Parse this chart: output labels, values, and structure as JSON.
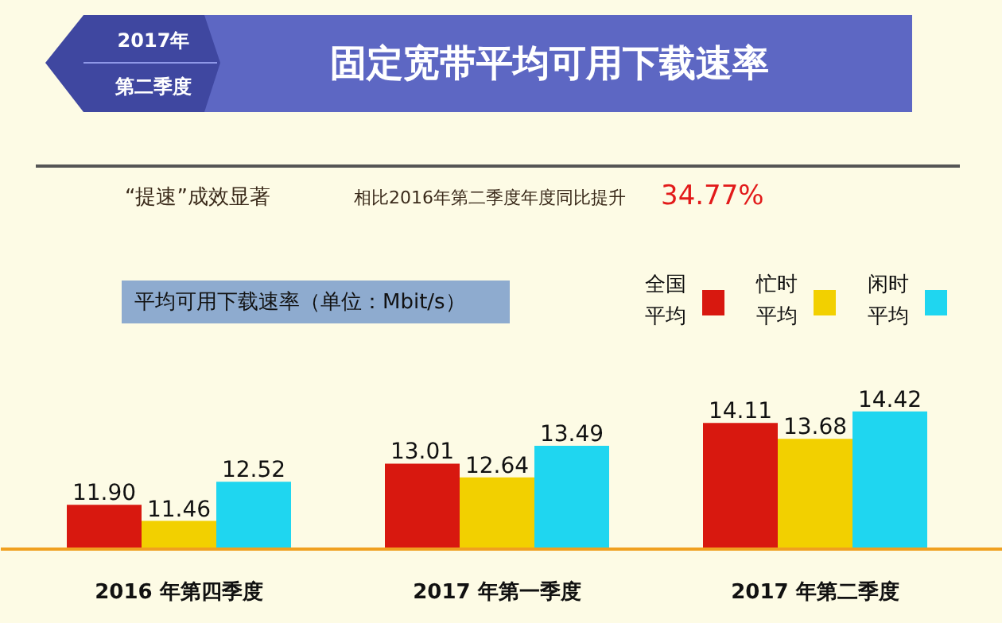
{
  "chart_data": {
    "type": "bar",
    "title": "固定宽带平均可用下载速率",
    "subtitle": "“提速”成效显著",
    "ylabel": "平均可用下载速率（单位：Mbit/s）",
    "annotations": [
      "2017年",
      "第二季度",
      "相比2016年第二季度年度同比提升",
      "34.77%"
    ],
    "categories": [
      "2016 年第四季度",
      "2017 年第一季度",
      "2017 年第二季度"
    ],
    "series": [
      {
        "name": "全国平均",
        "color": "#d8180f",
        "values": [
          11.9,
          13.01,
          14.11
        ],
        "value_labels": [
          "11.90",
          "13.01",
          "14.11"
        ]
      },
      {
        "name": "忙时平均",
        "color": "#f2d000",
        "values": [
          11.46,
          12.64,
          13.68
        ],
        "value_labels": [
          "11.46",
          "12.64",
          "13.68"
        ]
      },
      {
        "name": "闲时平均",
        "color": "#1fd6f0",
        "values": [
          12.52,
          13.49,
          14.42
        ],
        "value_labels": [
          "12.52",
          "13.49",
          "14.42"
        ]
      }
    ],
    "ylim": [
      10.7,
      16.5
    ],
    "tick_labels": "x",
    "grid": false,
    "legend": "top right"
  }
}
